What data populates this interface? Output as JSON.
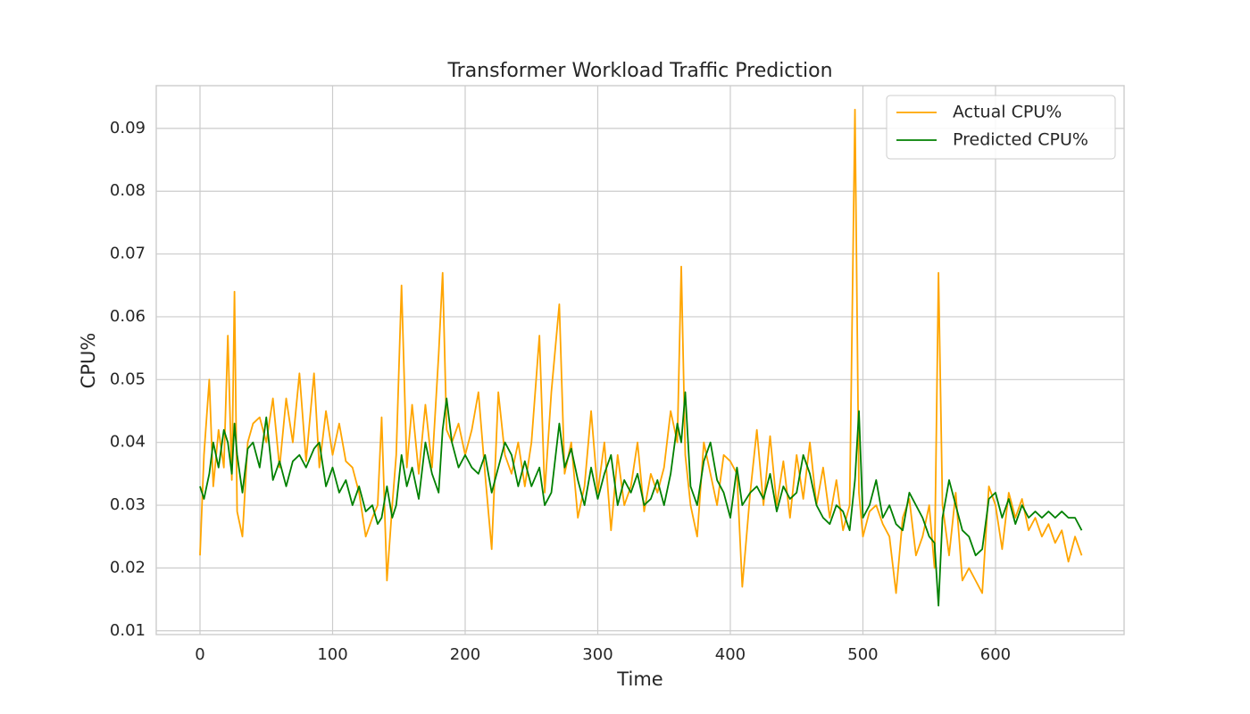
{
  "chart_data": {
    "type": "line",
    "title": "Transformer Workload Traffic Prediction",
    "x_label": "Time",
    "y_label": "CPU%",
    "x": [
      0,
      3,
      7,
      10,
      14,
      18,
      21,
      24,
      26,
      28,
      32,
      36,
      40,
      45,
      50,
      55,
      60,
      65,
      70,
      75,
      80,
      86,
      90,
      95,
      100,
      105,
      110,
      115,
      120,
      125,
      130,
      134,
      137,
      141,
      145,
      148,
      152,
      156,
      160,
      165,
      170,
      175,
      180,
      183,
      186,
      190,
      195,
      200,
      205,
      210,
      215,
      220,
      225,
      230,
      235,
      240,
      245,
      250,
      256,
      260,
      265,
      271,
      275,
      280,
      285,
      290,
      295,
      300,
      305,
      310,
      315,
      320,
      325,
      330,
      335,
      340,
      345,
      350,
      355,
      360,
      363,
      366,
      370,
      375,
      380,
      385,
      390,
      395,
      400,
      405,
      409,
      415,
      420,
      425,
      430,
      435,
      440,
      445,
      450,
      455,
      460,
      465,
      470,
      475,
      480,
      485,
      490,
      494,
      497,
      500,
      505,
      510,
      515,
      520,
      525,
      530,
      535,
      540,
      545,
      550,
      554,
      557,
      560,
      565,
      570,
      575,
      580,
      585,
      590,
      595,
      600,
      605,
      610,
      615,
      620,
      625,
      630,
      635,
      640,
      645,
      650,
      655,
      660,
      665
    ],
    "series": [
      {
        "name": "Actual CPU%",
        "color": "#ffa500",
        "values": [
          0.022,
          0.038,
          0.05,
          0.033,
          0.042,
          0.036,
          0.057,
          0.034,
          0.064,
          0.029,
          0.025,
          0.04,
          0.043,
          0.044,
          0.04,
          0.047,
          0.036,
          0.047,
          0.04,
          0.051,
          0.037,
          0.051,
          0.036,
          0.045,
          0.038,
          0.043,
          0.037,
          0.036,
          0.032,
          0.025,
          0.028,
          0.03,
          0.044,
          0.018,
          0.03,
          0.038,
          0.065,
          0.036,
          0.046,
          0.035,
          0.046,
          0.036,
          0.054,
          0.067,
          0.042,
          0.04,
          0.043,
          0.038,
          0.042,
          0.048,
          0.035,
          0.023,
          0.048,
          0.038,
          0.035,
          0.04,
          0.033,
          0.04,
          0.057,
          0.032,
          0.048,
          0.062,
          0.035,
          0.04,
          0.028,
          0.033,
          0.045,
          0.032,
          0.04,
          0.026,
          0.038,
          0.03,
          0.033,
          0.04,
          0.029,
          0.035,
          0.032,
          0.036,
          0.045,
          0.04,
          0.068,
          0.038,
          0.03,
          0.025,
          0.04,
          0.035,
          0.03,
          0.038,
          0.037,
          0.035,
          0.017,
          0.032,
          0.042,
          0.03,
          0.041,
          0.03,
          0.037,
          0.028,
          0.038,
          0.031,
          0.04,
          0.03,
          0.036,
          0.028,
          0.034,
          0.026,
          0.03,
          0.093,
          0.032,
          0.025,
          0.029,
          0.03,
          0.027,
          0.025,
          0.016,
          0.028,
          0.031,
          0.022,
          0.025,
          0.03,
          0.02,
          0.067,
          0.03,
          0.022,
          0.032,
          0.018,
          0.02,
          0.018,
          0.016,
          0.033,
          0.03,
          0.023,
          0.032,
          0.028,
          0.031,
          0.026,
          0.028,
          0.025,
          0.027,
          0.024,
          0.026,
          0.021,
          0.025,
          0.022
        ]
      },
      {
        "name": "Predicted CPU%",
        "color": "#008000",
        "values": [
          0.033,
          0.031,
          0.035,
          0.04,
          0.036,
          0.042,
          0.04,
          0.035,
          0.043,
          0.038,
          0.032,
          0.039,
          0.04,
          0.036,
          0.044,
          0.034,
          0.037,
          0.033,
          0.037,
          0.038,
          0.036,
          0.039,
          0.04,
          0.033,
          0.036,
          0.032,
          0.034,
          0.03,
          0.033,
          0.029,
          0.03,
          0.027,
          0.028,
          0.033,
          0.028,
          0.03,
          0.038,
          0.033,
          0.036,
          0.031,
          0.04,
          0.035,
          0.032,
          0.042,
          0.047,
          0.04,
          0.036,
          0.038,
          0.036,
          0.035,
          0.038,
          0.032,
          0.036,
          0.04,
          0.038,
          0.033,
          0.037,
          0.033,
          0.036,
          0.03,
          0.032,
          0.043,
          0.036,
          0.039,
          0.034,
          0.03,
          0.036,
          0.031,
          0.035,
          0.038,
          0.03,
          0.034,
          0.032,
          0.035,
          0.03,
          0.031,
          0.034,
          0.03,
          0.035,
          0.043,
          0.04,
          0.048,
          0.033,
          0.03,
          0.037,
          0.04,
          0.034,
          0.032,
          0.028,
          0.036,
          0.03,
          0.032,
          0.033,
          0.031,
          0.035,
          0.029,
          0.033,
          0.031,
          0.032,
          0.038,
          0.035,
          0.03,
          0.028,
          0.027,
          0.03,
          0.029,
          0.026,
          0.034,
          0.045,
          0.028,
          0.03,
          0.034,
          0.028,
          0.03,
          0.027,
          0.026,
          0.032,
          0.03,
          0.028,
          0.025,
          0.024,
          0.014,
          0.028,
          0.034,
          0.03,
          0.026,
          0.025,
          0.022,
          0.023,
          0.031,
          0.032,
          0.028,
          0.031,
          0.027,
          0.03,
          0.028,
          0.029,
          0.028,
          0.029,
          0.028,
          0.029,
          0.028,
          0.028,
          0.026
        ]
      }
    ],
    "xlim": [
      -33,
      697
    ],
    "ylim": [
      0.0094,
      0.0968
    ],
    "xticks": [
      0,
      100,
      200,
      300,
      400,
      500,
      600
    ],
    "yticks": [
      0.01,
      0.02,
      0.03,
      0.04,
      0.05,
      0.06,
      0.07,
      0.08,
      0.09
    ],
    "grid": true,
    "legend": "upper right"
  }
}
